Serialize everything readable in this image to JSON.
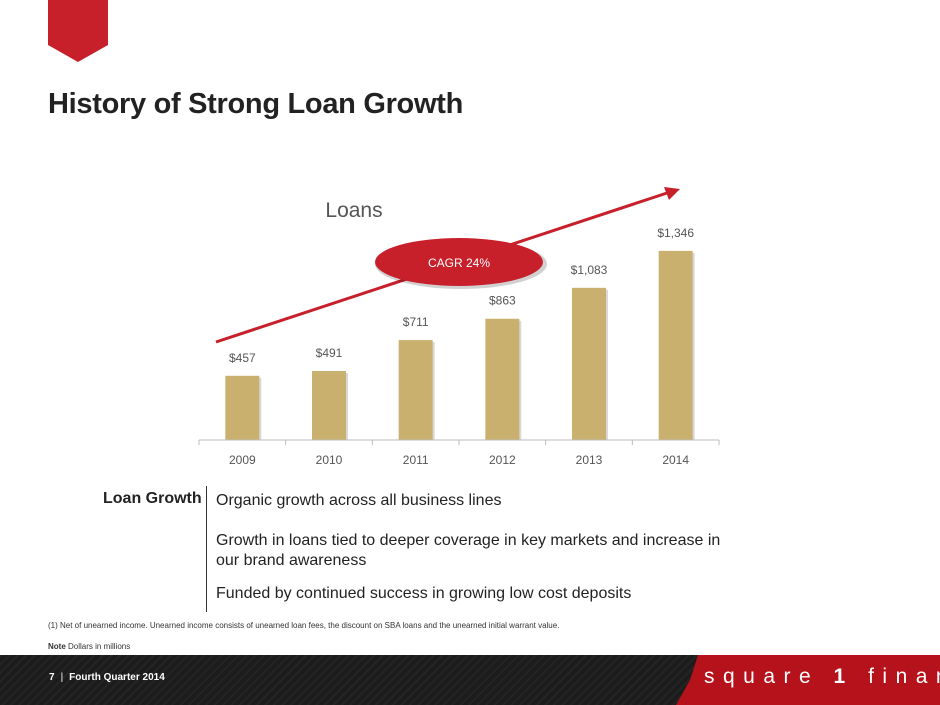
{
  "page": {
    "title": "History of Strong Loan Growth"
  },
  "chart_data": {
    "type": "bar",
    "title": "Loans",
    "categories": [
      "2009",
      "2010",
      "2011",
      "2012",
      "2013",
      "2014"
    ],
    "values": [
      457,
      491,
      711,
      863,
      1083,
      1346
    ],
    "data_labels": [
      "$457",
      "$491",
      "$711",
      "$863",
      "$1,083",
      "$1,346"
    ],
    "ylim": [
      0,
      1600
    ],
    "xlabel": "",
    "ylabel": "",
    "grid": false,
    "annotations": [
      {
        "text": "CAGR 24%",
        "kind": "badge-with-trend-arrow"
      }
    ],
    "colors": {
      "bar": "#c9b06f",
      "accent": "#c8202b"
    }
  },
  "details": {
    "label": "Loan Growth",
    "bullets": [
      "Organic growth across all business lines",
      "Growth in loans tied to deeper coverage in key markets and increase in our brand awareness",
      "Funded by continued success in growing low cost deposits"
    ]
  },
  "footnote": "(1) Net of unearned income. Unearned income consists of unearned loan fees, the discount on SBA loans and the unearned initial warrant value.",
  "note": {
    "label": "Note",
    "text": " Dollars in millions"
  },
  "footer": {
    "page_number": "7",
    "separator": "|",
    "period": "Fourth Quarter 2014",
    "brand_pre": "square ",
    "brand_one": "1",
    "brand_post": " financial"
  }
}
